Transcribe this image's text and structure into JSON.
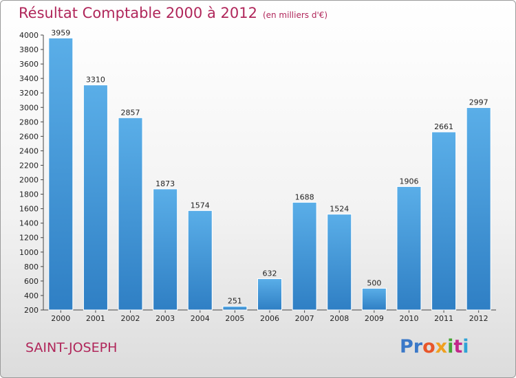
{
  "header": {
    "title": "Résultat Comptable 2000 à 2012",
    "unit": "(en milliers d'€)"
  },
  "footer": {
    "commune": "SAINT-JOSEPH",
    "logo": [
      "Pr",
      "o",
      "x",
      "i",
      "t",
      "i"
    ]
  },
  "colors": {
    "bar_light": "#5aaee8",
    "bar_dark": "#2f7fc4",
    "title": "#b0265a"
  },
  "chart_data": {
    "type": "bar",
    "title": "Résultat Comptable 2000 à 2012",
    "subtitle": "(en milliers d'€)",
    "categories": [
      "2000",
      "2001",
      "2002",
      "2003",
      "2004",
      "2005",
      "2006",
      "2007",
      "2008",
      "2009",
      "2010",
      "2011",
      "2012"
    ],
    "values": [
      3959,
      3310,
      2857,
      1873,
      1574,
      251,
      632,
      1688,
      1524,
      500,
      1906,
      2661,
      2997
    ],
    "data_labels": [
      "3959",
      "3310",
      "2857",
      "1873",
      "1574",
      "251",
      "632",
      "1688",
      "1524",
      "500",
      "1906",
      "2661",
      "2997"
    ],
    "yticks": [
      "200",
      "400",
      "600",
      "800",
      "1000",
      "1200",
      "1400",
      "1600",
      "1800",
      "2000",
      "2200",
      "2400",
      "2600",
      "2800",
      "3000",
      "3200",
      "3400",
      "3600",
      "3800",
      "4000"
    ],
    "ylim": [
      200,
      4000
    ],
    "xlabel": "",
    "ylabel": "",
    "grid": false
  }
}
